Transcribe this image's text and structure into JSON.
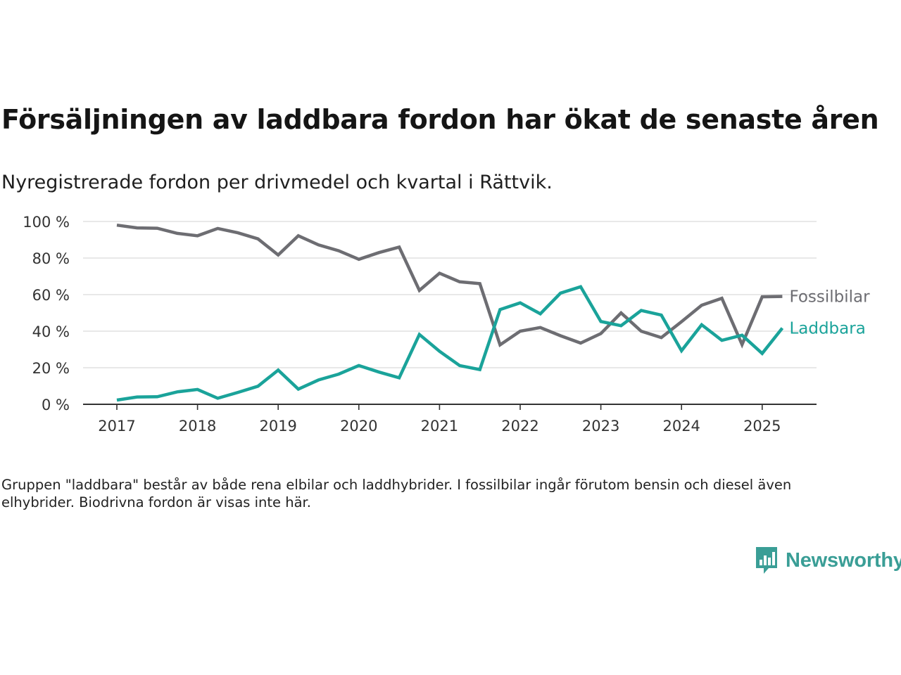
{
  "colors": {
    "fossil": "#6d6d72",
    "laddbara": "#1aa39a",
    "grid": "#d9d9d9",
    "axis": "#333333",
    "brand": "#3a9e96"
  },
  "header": {
    "title": "Försäljningen av laddbara fordon har ökat de senaste åren",
    "subtitle": "Nyregistrerade fordon per drivmedel och kvartal i Rättvik."
  },
  "chart_data": {
    "type": "line",
    "title": "Försäljningen av laddbara fordon har ökat de senaste åren",
    "subtitle": "Nyregistrerade fordon per drivmedel och kvartal i Rättvik.",
    "x": [
      "2017-Q1",
      "2017-Q2",
      "2017-Q3",
      "2017-Q4",
      "2018-Q1",
      "2018-Q2",
      "2018-Q3",
      "2018-Q4",
      "2019-Q1",
      "2019-Q2",
      "2019-Q3",
      "2019-Q4",
      "2020-Q1",
      "2020-Q2",
      "2020-Q3",
      "2020-Q4",
      "2021-Q1",
      "2021-Q2",
      "2021-Q3",
      "2021-Q4",
      "2022-Q1",
      "2022-Q2",
      "2022-Q3",
      "2022-Q4",
      "2023-Q1",
      "2023-Q2",
      "2023-Q3",
      "2023-Q4",
      "2024-Q1",
      "2024-Q2",
      "2024-Q3",
      "2024-Q4",
      "2025-Q1",
      "2025-Q2"
    ],
    "xticks": [
      "2017",
      "2018",
      "2019",
      "2020",
      "2021",
      "2022",
      "2023",
      "2024",
      "2025"
    ],
    "yticks": [
      "0 %",
      "20 %",
      "40 %",
      "60 %",
      "80 %",
      "100 %"
    ],
    "ylim": [
      0,
      100
    ],
    "grid": true,
    "series": [
      {
        "name": "Fossilbilar",
        "color": "#6d6d72",
        "values": [
          98,
          96.5,
          96.3,
          93.5,
          92.2,
          96.2,
          93.8,
          90.5,
          81.7,
          92.2,
          87.2,
          84,
          79.3,
          83,
          86,
          62.3,
          71.7,
          67,
          66,
          32.5,
          40,
          42,
          37.5,
          33.5,
          38.7,
          50,
          40,
          36.5,
          45.2,
          54.2,
          58,
          32.7,
          58.8,
          59
        ]
      },
      {
        "name": "Laddbara",
        "color": "#1aa39a",
        "values": [
          2.3,
          4,
          4.1,
          6.8,
          8.1,
          3.3,
          6.5,
          9.9,
          18.7,
          8.3,
          13.3,
          16.5,
          21.2,
          17.6,
          14.5,
          38.2,
          29,
          21.2,
          19,
          51.8,
          55.5,
          49.5,
          60.8,
          64.3,
          45.3,
          43,
          51.3,
          48.8,
          29.3,
          43.5,
          35,
          37.8,
          27.8,
          41.7
        ]
      }
    ]
  },
  "footnote": "Gruppen \"laddbara\" består av både rena elbilar och laddhybrider. I fossilbilar ingår förutom bensin och diesel även elhybrider. Biodrivna fordon är visas inte här.",
  "brand": {
    "name": "Newsworthy",
    "logo_icon": "bar-chart-speech-bubble-icon"
  }
}
